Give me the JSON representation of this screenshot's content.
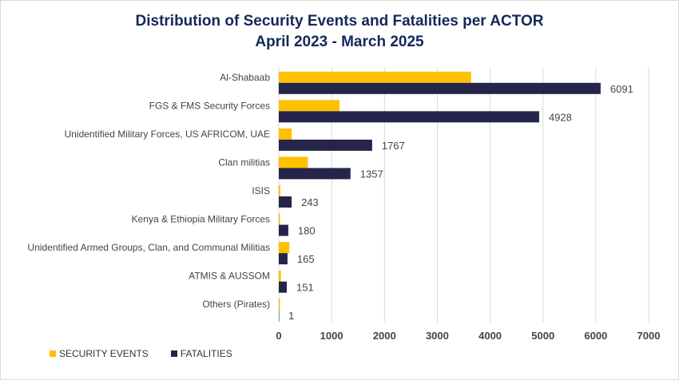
{
  "chart_data": {
    "type": "bar",
    "orientation": "horizontal",
    "title": "Distribution of Security Events and Fatalities per ACTOR",
    "subtitle": "April 2023 - March 2025",
    "categories": [
      "Al-Shabaab",
      "FGS & FMS Security Forces",
      "Unidentified Military Forces, US AFRICOM, UAE",
      "Clan militias",
      "ISIS",
      "Kenya & Ethiopia Military Forces",
      "Unidentified Armed Groups, Clan, and Communal Militias",
      "ATMIS & AUSSOM",
      "Others (Pirates)"
    ],
    "series": [
      {
        "name": "SECURITY EVENTS",
        "color": "#ffc000",
        "values": [
          3640,
          1150,
          245,
          550,
          30,
          20,
          200,
          40,
          15
        ]
      },
      {
        "name": "FATALITIES",
        "color": "#25244a",
        "values": [
          6091,
          4928,
          1767,
          1357,
          243,
          180,
          165,
          151,
          1
        ],
        "labels": [
          "6091",
          "4928",
          "1767",
          "1357",
          "243",
          "180",
          "165",
          "151",
          "1"
        ]
      }
    ],
    "xlim": [
      0,
      7000
    ],
    "xticks": [
      "0",
      "1000",
      "2000",
      "3000",
      "4000",
      "5000",
      "6000",
      "7000"
    ],
    "grid": "vertical",
    "legend_position": "bottom-left"
  }
}
